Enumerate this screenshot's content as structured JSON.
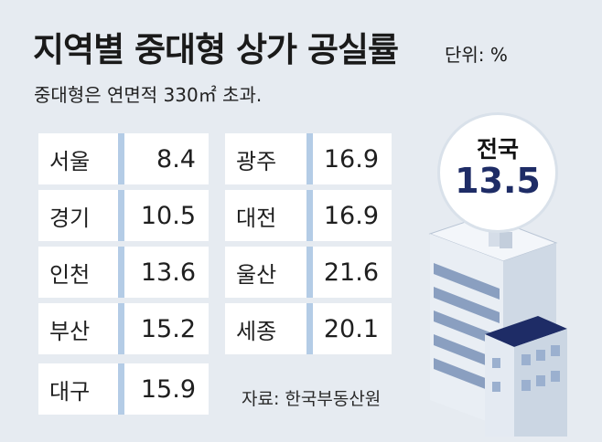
{
  "title": "지역별 중대형 상가 공실률",
  "unit": "단위: %",
  "subtitle": "중대형은 연면적 330㎡ 초과.",
  "source": "자료: 한국부동산원",
  "national": {
    "label": "전국",
    "value": "13.5"
  },
  "colors": {
    "accent_bar": "#b4cce6",
    "national_value": "#1e2c66",
    "background": "#e6ebf1"
  },
  "chart_data": {
    "type": "table",
    "title": "지역별 중대형 상가 공실률",
    "unit": "%",
    "rows": [
      {
        "region": "서울",
        "value": "8.4"
      },
      {
        "region": "경기",
        "value": "10.5"
      },
      {
        "region": "인천",
        "value": "13.6"
      },
      {
        "region": "부산",
        "value": "15.2"
      },
      {
        "region": "대구",
        "value": "15.9"
      },
      {
        "region": "광주",
        "value": "16.9"
      },
      {
        "region": "대전",
        "value": "16.9"
      },
      {
        "region": "울산",
        "value": "21.6"
      },
      {
        "region": "세종",
        "value": "20.1"
      }
    ]
  }
}
